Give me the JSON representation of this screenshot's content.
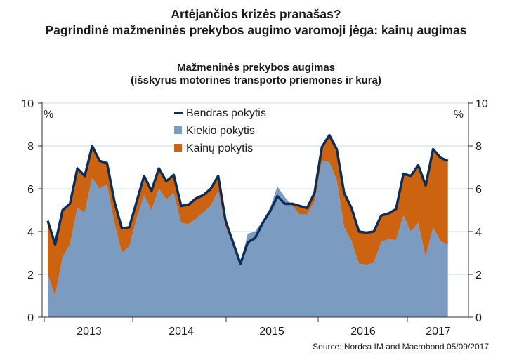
{
  "header": {
    "title": "Artėjančios krizės pranašas?",
    "subtitle": "Pagrindinė mažmeninės prekybos augimo varomoji jėga: kainų augimas"
  },
  "chart_data": {
    "type": "area",
    "title": "Mažmeninės prekybos augimas",
    "subtitle": "(išskyrus motorines transporto priemones ir kurą)",
    "unit_left": "%",
    "unit_right": "%",
    "ylim": [
      0,
      10
    ],
    "yticks": [
      0,
      2,
      4,
      6,
      8,
      10
    ],
    "grid": true,
    "legend_position": "top-center",
    "x_start": "2012-07",
    "x_end": "2017-07",
    "years": [
      "2013",
      "2014",
      "2015",
      "2016",
      "2017"
    ],
    "series": [
      {
        "name": "Bendras pokytis",
        "style": "line",
        "color": "#0b2d57",
        "values": [
          4.5,
          3.4,
          5.0,
          5.3,
          6.95,
          6.6,
          8.0,
          7.3,
          7.2,
          5.4,
          4.15,
          4.2,
          5.4,
          6.6,
          5.9,
          6.95,
          6.35,
          6.65,
          5.2,
          5.25,
          5.55,
          5.7,
          6.0,
          6.6,
          4.5,
          3.5,
          2.5,
          3.5,
          3.7,
          4.4,
          4.95,
          5.65,
          5.3,
          5.3,
          5.2,
          5.1,
          5.8,
          7.95,
          8.5,
          7.85,
          5.8,
          5.1,
          4.0,
          3.95,
          4.0,
          4.75,
          4.85,
          5.05,
          6.7,
          6.6,
          7.1,
          6.15,
          7.85,
          7.45,
          7.3
        ]
      },
      {
        "name": "Kiekio pokytis",
        "style": "area",
        "color": "#7b9cc0",
        "values": [
          2.0,
          1.0,
          2.8,
          3.4,
          5.1,
          4.9,
          6.5,
          6.0,
          6.2,
          4.4,
          3.0,
          3.3,
          4.6,
          5.7,
          5.0,
          6.0,
          5.5,
          5.8,
          4.4,
          4.35,
          4.6,
          4.9,
          5.2,
          5.9,
          4.2,
          3.4,
          2.5,
          3.9,
          4.0,
          4.5,
          5.1,
          6.1,
          5.6,
          5.2,
          4.8,
          4.8,
          5.4,
          7.3,
          7.25,
          6.4,
          4.2,
          3.55,
          2.5,
          2.45,
          2.55,
          3.5,
          3.65,
          3.6,
          4.75,
          4.0,
          4.4,
          2.8,
          4.2,
          3.55,
          3.4
        ]
      },
      {
        "name": "Kainų pokytis",
        "style": "area",
        "color": "#cb6311",
        "values": [
          2.5,
          2.4,
          2.2,
          1.9,
          1.85,
          1.7,
          1.5,
          1.3,
          1.0,
          1.0,
          1.15,
          0.9,
          0.8,
          0.9,
          0.9,
          0.95,
          0.85,
          0.85,
          0.8,
          0.9,
          0.95,
          0.8,
          0.8,
          0.7,
          0.3,
          0.1,
          0.0,
          -0.4,
          -0.3,
          -0.1,
          -0.15,
          -0.45,
          -0.3,
          0.1,
          0.4,
          0.3,
          0.4,
          0.65,
          1.25,
          1.45,
          1.6,
          1.55,
          1.5,
          1.5,
          1.45,
          1.25,
          1.2,
          1.45,
          1.95,
          2.6,
          2.7,
          3.35,
          3.65,
          3.9,
          3.9
        ]
      }
    ]
  },
  "source": "Source: Nordea IM and Macrobond 05/09/2017"
}
